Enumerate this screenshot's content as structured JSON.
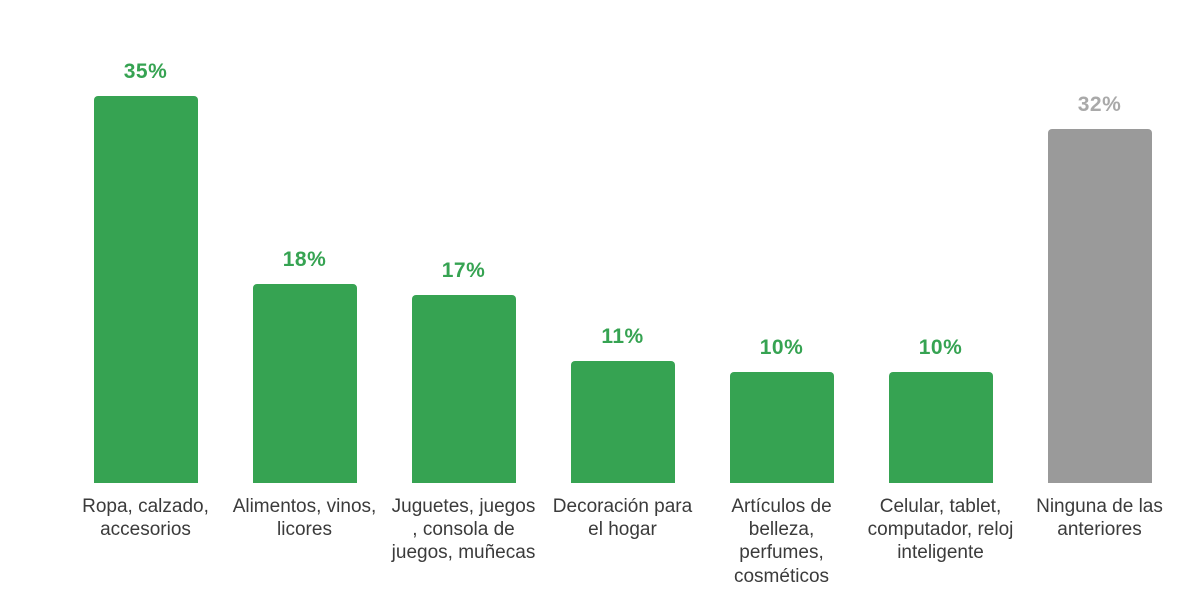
{
  "chart_data": {
    "type": "bar",
    "title": "",
    "xlabel": "",
    "ylabel": "",
    "categories": [
      "Ropa, calzado, accesorios",
      "Alimentos, vinos, licores",
      "Juguetes, juegos , consola de juegos, muñecas",
      "Decoración para el hogar",
      "Artículos de belleza, perfumes, cosméticos",
      "Celular, tablet, computador, reloj inteligente",
      "Ninguna de las anteriores"
    ],
    "values": [
      35,
      18,
      17,
      11,
      10,
      10,
      32
    ],
    "value_labels": [
      "35%",
      "18%",
      "17%",
      "11%",
      "10%",
      "10%",
      "32%"
    ],
    "bar_colors": [
      "#36A352",
      "#36A352",
      "#36A352",
      "#36A352",
      "#36A352",
      "#36A352",
      "#9A9A9A"
    ],
    "value_label_colors": [
      "#36A352",
      "#36A352",
      "#36A352",
      "#36A352",
      "#36A352",
      "#36A352",
      "#A9A9A9"
    ],
    "ylim": [
      0,
      40
    ],
    "grid": false,
    "legend": "none",
    "axes_visible": false
  },
  "colors": {
    "green": "#36A352",
    "gray_bar": "#9A9A9A",
    "gray_label": "#A9A9A9",
    "category_text": "#3B3B3B",
    "background": "#FFFFFF"
  }
}
